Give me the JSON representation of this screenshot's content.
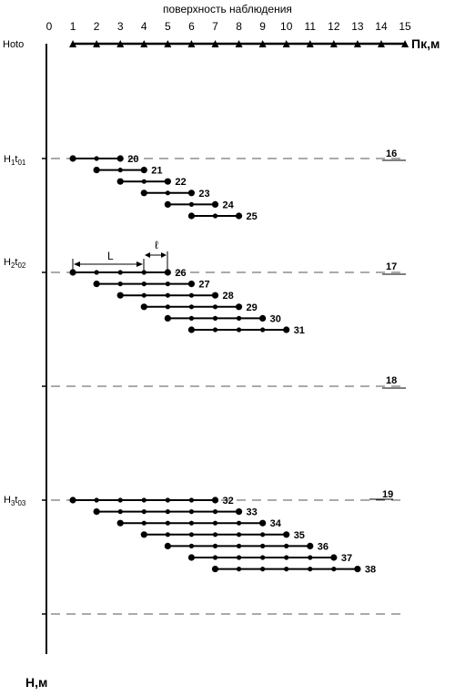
{
  "header": {
    "surface_label": "поверхность наблюдения"
  },
  "x_axis": {
    "ticks": [
      "0",
      "1",
      "2",
      "3",
      "4",
      "5",
      "6",
      "7",
      "8",
      "9",
      "10",
      "11",
      "12",
      "13",
      "14",
      "15"
    ],
    "unit_label": "Пк,м"
  },
  "y_axis": {
    "label": "Н,м"
  },
  "levels": [
    {
      "id": "0",
      "label_main": "Hoto",
      "label_sub": "",
      "level_number": ""
    },
    {
      "id": "1",
      "label_main": "H",
      "sub1": "1",
      "mid": "t",
      "sub2": "01",
      "level_number": "16"
    },
    {
      "id": "2",
      "label_main": "H",
      "sub1": "2",
      "mid": "t",
      "sub2": "02",
      "level_number": "17"
    },
    {
      "id": "3",
      "label_main": "",
      "level_number": "18"
    },
    {
      "id": "4",
      "label_main": "H",
      "sub1": "3",
      "mid": "t",
      "sub2": "03",
      "level_number": "19"
    },
    {
      "id": "5",
      "label_main": "",
      "level_number": ""
    }
  ],
  "dimensions": {
    "length_label": "L",
    "step_label": "ℓ"
  },
  "measurement_rows": [
    {
      "number": "20",
      "start": 1,
      "end": 3,
      "group": 1
    },
    {
      "number": "21",
      "start": 2,
      "end": 4,
      "group": 1
    },
    {
      "number": "22",
      "start": 3,
      "end": 5,
      "group": 1
    },
    {
      "number": "23",
      "start": 4,
      "end": 6,
      "group": 1
    },
    {
      "number": "24",
      "start": 5,
      "end": 7,
      "group": 1
    },
    {
      "number": "25",
      "start": 6,
      "end": 8,
      "group": 1
    },
    {
      "number": "26",
      "start": 1,
      "end": 5,
      "group": 2
    },
    {
      "number": "27",
      "start": 2,
      "end": 6,
      "group": 2
    },
    {
      "number": "28",
      "start": 3,
      "end": 7,
      "group": 2
    },
    {
      "number": "29",
      "start": 4,
      "end": 8,
      "group": 2
    },
    {
      "number": "30",
      "start": 5,
      "end": 9,
      "group": 2
    },
    {
      "number": "31",
      "start": 6,
      "end": 10,
      "group": 2
    },
    {
      "number": "32",
      "start": 1,
      "end": 7,
      "group": 3
    },
    {
      "number": "33",
      "start": 2,
      "end": 8,
      "group": 3
    },
    {
      "number": "34",
      "start": 3,
      "end": 9,
      "group": 3
    },
    {
      "number": "35",
      "start": 4,
      "end": 10,
      "group": 3
    },
    {
      "number": "36",
      "start": 5,
      "end": 11,
      "group": 3
    },
    {
      "number": "37",
      "start": 6,
      "end": 12,
      "group": 3
    },
    {
      "number": "38",
      "start": 7,
      "end": 13,
      "group": 3
    }
  ],
  "colors": {
    "ink": "#000000",
    "dash": "#555555"
  }
}
